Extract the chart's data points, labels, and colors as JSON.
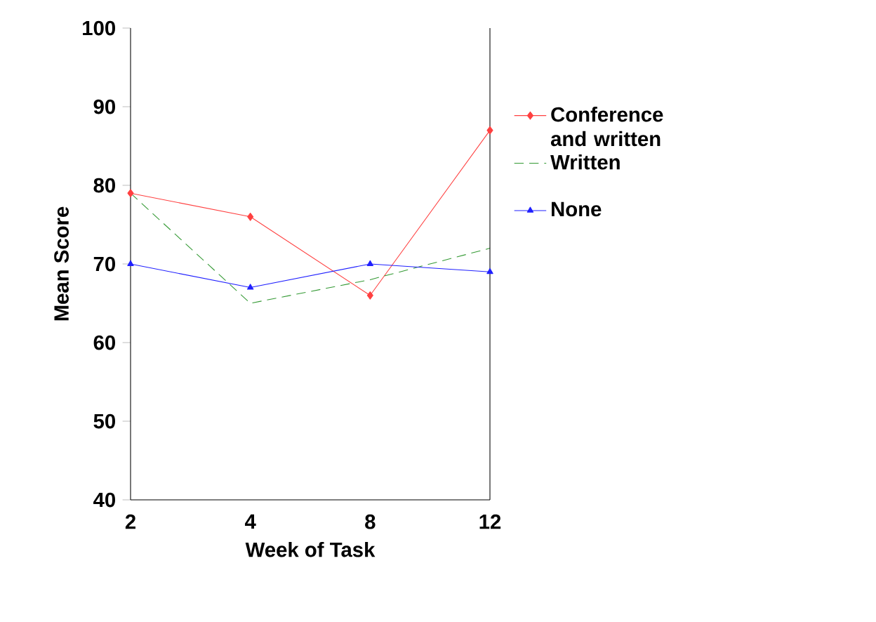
{
  "chart_data": {
    "type": "line",
    "xlabel": "Week of Task",
    "ylabel": "Mean Score",
    "categories": [
      "2",
      "4",
      "8",
      "12"
    ],
    "series": [
      {
        "name": "Conference and written",
        "color": "#ff4040",
        "values": [
          79,
          76,
          66,
          87
        ],
        "marker": "diamond",
        "line_style": "solid"
      },
      {
        "name": "Written",
        "color": "#339933",
        "values": [
          79,
          65,
          68,
          72
        ],
        "marker": "none",
        "line_style": "dashed"
      },
      {
        "name": "None",
        "color": "#2020ff",
        "values": [
          70,
          67,
          70,
          69
        ],
        "marker": "triangle",
        "line_style": "solid"
      }
    ],
    "ylim": [
      40,
      100
    ],
    "yticks": [
      40,
      50,
      60,
      70,
      80,
      90,
      100
    ],
    "grid": false,
    "legend": "right"
  }
}
